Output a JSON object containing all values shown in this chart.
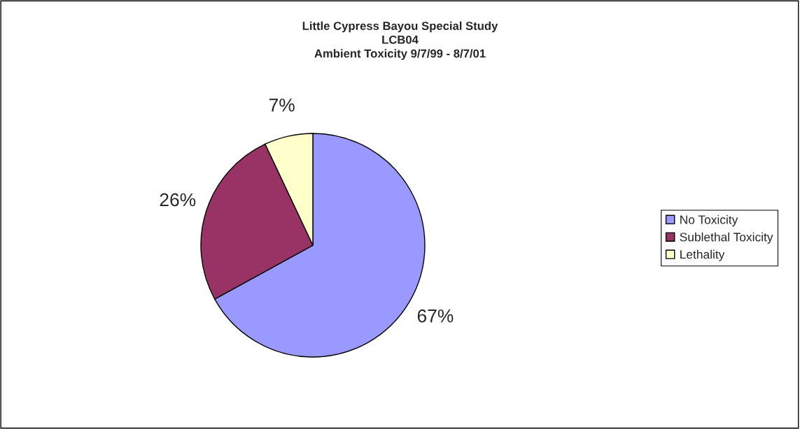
{
  "chart_data": {
    "type": "pie",
    "title": "Little Cypress Bayou Special Study\nLCB04\nAmbient Toxicity 9/7/99 - 8/7/01",
    "categories": [
      "No Toxicity",
      "Sublethal Toxicity",
      "Lethality"
    ],
    "values": [
      67,
      26,
      7
    ],
    "value_labels": [
      "67%",
      "26%",
      "7%"
    ],
    "colors": [
      "#9999ff",
      "#993366",
      "#ffffcc"
    ],
    "legend": "right"
  }
}
